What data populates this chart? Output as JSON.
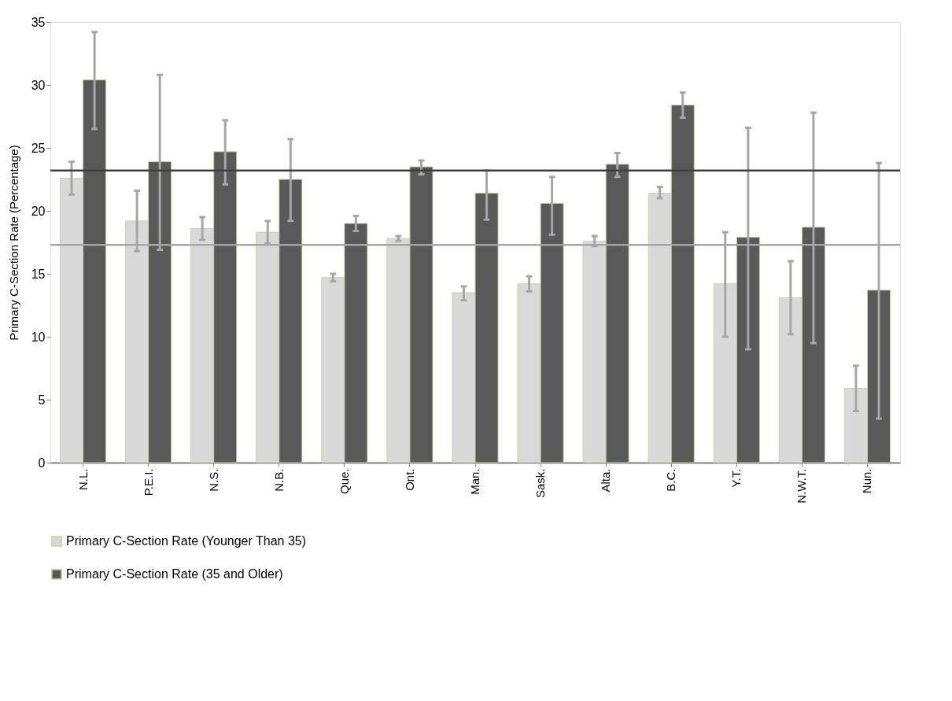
{
  "chart_data": {
    "type": "bar",
    "ylabel": "Primary C-Section Rate (Percentage)",
    "categories": [
      "N.L.",
      "P.E.I.",
      "N.S.",
      "N.B.",
      "Que.",
      "Ont.",
      "Man.",
      "Sask.",
      "Alta.",
      "B.C.",
      "Y.T.",
      "N.W.T.",
      "Nun."
    ],
    "series": [
      {
        "name": "Primary C-Section Rate (Younger Than 35)",
        "color": "#d9d9d9",
        "values": [
          22.6,
          19.2,
          18.6,
          18.3,
          14.7,
          17.8,
          13.5,
          14.2,
          17.6,
          21.4,
          14.2,
          13.1,
          5.9
        ],
        "errors": [
          [
            21.3,
            23.9
          ],
          [
            16.8,
            21.6
          ],
          [
            17.7,
            19.5
          ],
          [
            17.4,
            19.2
          ],
          [
            14.4,
            15.0
          ],
          [
            17.6,
            18.0
          ],
          [
            12.9,
            14.0
          ],
          [
            13.6,
            14.8
          ],
          [
            17.2,
            18.0
          ],
          [
            21.0,
            21.9
          ],
          [
            10.0,
            18.3
          ],
          [
            10.2,
            16.0
          ],
          [
            4.1,
            7.7
          ]
        ]
      },
      {
        "name": "Primary C-Section Rate (35 and Older)",
        "color": "#595959",
        "values": [
          30.4,
          23.9,
          24.7,
          22.5,
          19.0,
          23.5,
          21.4,
          20.6,
          23.7,
          28.4,
          17.9,
          18.7,
          13.7
        ],
        "errors": [
          [
            26.5,
            34.2
          ],
          [
            16.9,
            30.8
          ],
          [
            22.1,
            27.2
          ],
          [
            19.2,
            25.7
          ],
          [
            18.4,
            19.6
          ],
          [
            22.9,
            24.0
          ],
          [
            19.3,
            23.2
          ],
          [
            18.1,
            22.7
          ],
          [
            22.7,
            24.6
          ],
          [
            27.4,
            29.4
          ],
          [
            9.0,
            26.6
          ],
          [
            9.5,
            27.8
          ],
          [
            3.5,
            23.8
          ]
        ]
      }
    ],
    "ylim": [
      0,
      35
    ],
    "yticks": [
      0,
      5,
      10,
      15,
      20,
      25,
      30,
      35
    ],
    "ref_lines": [
      {
        "axis": "y",
        "value": 23.2,
        "color": "#404040"
      },
      {
        "axis": "y",
        "value": 17.3,
        "color": "#a6a6a6"
      }
    ],
    "legend": "bottom",
    "grid": false
  }
}
